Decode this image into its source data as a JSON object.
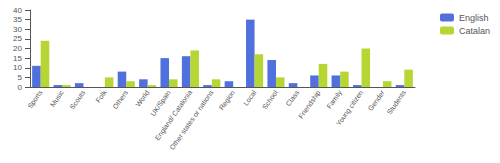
{
  "chart_data": {
    "type": "bar",
    "categories": [
      "Sports",
      "Music",
      "Scouts",
      "Folk",
      "Others",
      "World",
      "UK/Spain",
      "England/ Catalonia",
      "Other states or nations",
      "Region",
      "Local",
      "School",
      "Class",
      "Friendship",
      "Family",
      "Young citizen",
      "Gender",
      "Students"
    ],
    "series": [
      {
        "name": "English",
        "values": [
          11,
          1,
          2,
          0,
          8,
          4,
          15,
          16,
          1,
          3,
          35,
          14,
          2,
          6,
          6,
          1,
          0,
          1
        ]
      },
      {
        "name": "Catalan",
        "values": [
          24,
          1,
          0,
          5,
          3,
          1,
          4,
          19,
          4,
          0,
          17,
          5,
          0,
          12,
          8,
          20,
          3,
          9
        ]
      }
    ],
    "ylim": [
      0,
      40
    ],
    "yticks": [
      0,
      5,
      10,
      15,
      20,
      25,
      30,
      35,
      40
    ],
    "grid": false,
    "legend": "upper right"
  }
}
